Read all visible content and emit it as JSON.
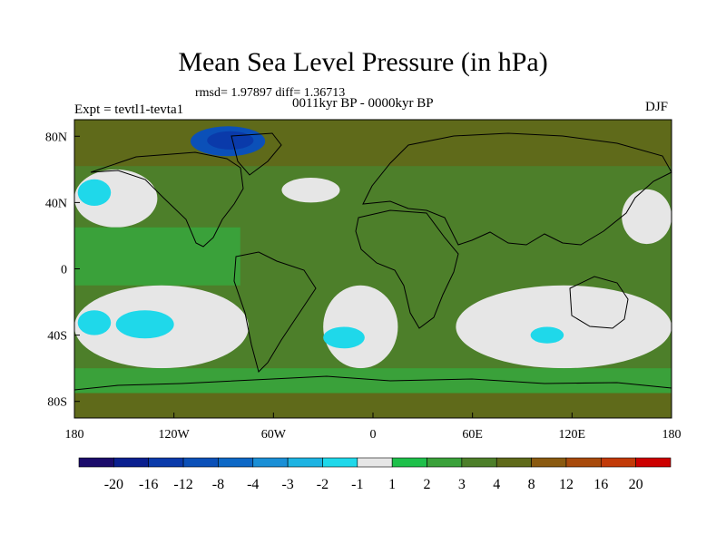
{
  "title": "Mean Sea Level Pressure (in hPa)",
  "stats": "rmsd= 1.97897 diff= 1.36713",
  "subtitle": "0011kyr BP - 0000kyr BP",
  "left_label": "Expt = tevtl1-tevta1",
  "right_label": "DJF",
  "chart_data": {
    "type": "heatmap",
    "projection": "cylindrical equidistant",
    "xlim": [
      -180,
      180
    ],
    "ylim": [
      -90,
      90
    ],
    "x_ticks": [
      {
        "value": -180,
        "label": "180"
      },
      {
        "value": -120,
        "label": "120W"
      },
      {
        "value": -60,
        "label": "60W"
      },
      {
        "value": 0,
        "label": "0"
      },
      {
        "value": 60,
        "label": "60E"
      },
      {
        "value": 120,
        "label": "120E"
      },
      {
        "value": 180,
        "label": "180"
      }
    ],
    "y_ticks": [
      {
        "value": 80,
        "label": "80N"
      },
      {
        "value": 40,
        "label": "40N"
      },
      {
        "value": 0,
        "label": "0"
      },
      {
        "value": -40,
        "label": "40S"
      },
      {
        "value": -80,
        "label": "80S"
      }
    ],
    "colorbar": {
      "levels": [
        "-20",
        "-16",
        "-12",
        "-8",
        "-4",
        "-3",
        "-2",
        "-1",
        "1",
        "2",
        "3",
        "4",
        "8",
        "12",
        "16",
        "20"
      ],
      "colors": [
        "#1b0b6b",
        "#0a1f8f",
        "#0a3aaa",
        "#0b50b8",
        "#0d68c6",
        "#1a8fd6",
        "#1db3e2",
        "#1fd8ea",
        "#e6e6e6",
        "#1ec04a",
        "#3aa13a",
        "#4d7f2a",
        "#5f6a1a",
        "#8a5a10",
        "#a84a0c",
        "#c23a08",
        "#cc0000"
      ]
    },
    "regions": [
      {
        "name": "background",
        "lon": [
          -180,
          180
        ],
        "lat": [
          -90,
          90
        ],
        "level": "3"
      },
      {
        "name": "arctic-brown",
        "lon": [
          -180,
          180
        ],
        "lat": [
          62,
          90
        ],
        "level": "4"
      },
      {
        "name": "greenland-low",
        "lon": [
          -110,
          -65
        ],
        "lat": [
          68,
          86
        ],
        "level": "-12"
      },
      {
        "name": "greenland-low-core",
        "lon": [
          -100,
          -72
        ],
        "lat": [
          72,
          83
        ],
        "level": "-16"
      },
      {
        "name": "north-pacific-white",
        "lon": [
          -180,
          -130
        ],
        "lat": [
          25,
          60
        ],
        "level": "-1"
      },
      {
        "name": "north-pacific-cyan",
        "lon": [
          -178,
          -158
        ],
        "lat": [
          38,
          54
        ],
        "level": "-2"
      },
      {
        "name": "north-atlantic-white",
        "lon": [
          -55,
          -20
        ],
        "lat": [
          40,
          55
        ],
        "level": "-1"
      },
      {
        "name": "tropical-pacific-green",
        "lon": [
          -180,
          -80
        ],
        "lat": [
          -10,
          25
        ],
        "level": "2"
      },
      {
        "name": "south-pacific-white",
        "lon": [
          -180,
          -75
        ],
        "lat": [
          -60,
          -10
        ],
        "level": "-1"
      },
      {
        "name": "south-pacific-cyan-west",
        "lon": [
          -178,
          -158
        ],
        "lat": [
          -40,
          -25
        ],
        "level": "-2"
      },
      {
        "name": "south-pacific-cyan-east",
        "lon": [
          -155,
          -120
        ],
        "lat": [
          -42,
          -25
        ],
        "level": "-2"
      },
      {
        "name": "south-atlantic-white",
        "lon": [
          -30,
          15
        ],
        "lat": [
          -60,
          -10
        ],
        "level": "-1"
      },
      {
        "name": "south-atlantic-cyan",
        "lon": [
          -30,
          -5
        ],
        "lat": [
          -48,
          -35
        ],
        "level": "-2"
      },
      {
        "name": "south-indian-white",
        "lon": [
          50,
          180
        ],
        "lat": [
          -60,
          -10
        ],
        "level": "-1"
      },
      {
        "name": "south-indian-cyan",
        "lon": [
          95,
          115
        ],
        "lat": [
          -45,
          -35
        ],
        "level": "-2"
      },
      {
        "name": "north-pacific-east-white",
        "lon": [
          150,
          180
        ],
        "lat": [
          15,
          48
        ],
        "level": "-1"
      },
      {
        "name": "southern-ocean-green",
        "lon": [
          -180,
          180
        ],
        "lat": [
          -75,
          -60
        ],
        "level": "2"
      },
      {
        "name": "antarctica-brown",
        "lon": [
          -180,
          180
        ],
        "lat": [
          -90,
          -75
        ],
        "level": "4"
      }
    ]
  }
}
